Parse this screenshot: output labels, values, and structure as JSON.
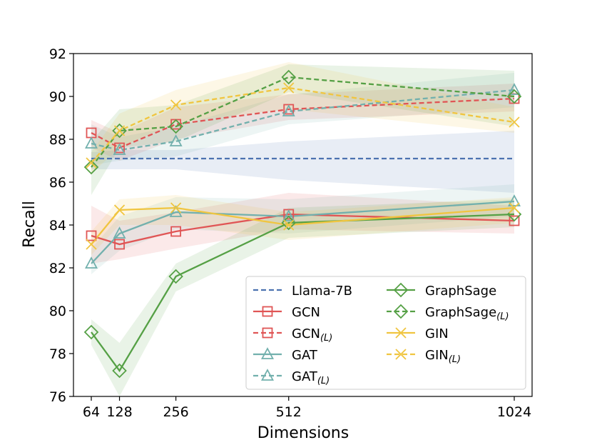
{
  "chart_data": {
    "type": "line",
    "title": "",
    "xlabel": "Dimensions",
    "ylabel": "Recall",
    "x": [
      64,
      128,
      256,
      512,
      1024
    ],
    "xticks": [
      64,
      128,
      256,
      512,
      1024
    ],
    "xtick_labels": [
      "64",
      "128",
      "256",
      "512",
      "1024"
    ],
    "ylim": [
      76,
      92
    ],
    "yticks": [
      76,
      78,
      80,
      82,
      84,
      86,
      88,
      90,
      92
    ],
    "ytick_labels": [
      "76",
      "78",
      "80",
      "82",
      "84",
      "86",
      "88",
      "90",
      "92"
    ],
    "grid": false,
    "legend_position": "lower-right",
    "series": [
      {
        "name": "Llama-7B",
        "legend_base": "Llama-7B",
        "legend_sub": "",
        "color": "#4C72B0",
        "dashed": true,
        "marker": "none",
        "values": [
          87.1,
          87.1,
          87.1,
          87.1,
          87.1
        ],
        "lower": [
          86.6,
          86.6,
          86.6,
          86.1,
          85.5
        ],
        "upper": [
          87.4,
          87.5,
          87.5,
          87.9,
          88.4
        ]
      },
      {
        "name": "GCN",
        "legend_base": "GCN",
        "legend_sub": "",
        "color": "#E05555",
        "dashed": false,
        "marker": "square",
        "values": [
          83.5,
          83.1,
          83.7,
          84.5,
          84.2
        ],
        "lower": [
          82.2,
          82.4,
          82.9,
          83.8,
          83.6
        ],
        "upper": [
          84.9,
          84.2,
          84.6,
          85.5,
          84.9
        ]
      },
      {
        "name": "GCN(L)",
        "legend_base": "GCN",
        "legend_sub": "(L)",
        "color": "#E05555",
        "dashed": true,
        "marker": "square",
        "values": [
          88.3,
          87.6,
          88.7,
          89.4,
          89.9
        ],
        "lower": [
          87.6,
          87.0,
          88.0,
          88.9,
          89.3
        ],
        "upper": [
          88.9,
          88.3,
          89.5,
          90.1,
          90.6
        ]
      },
      {
        "name": "GAT",
        "legend_base": "GAT",
        "legend_sub": "",
        "color": "#72B0AD",
        "dashed": false,
        "marker": "triangle",
        "values": [
          82.2,
          83.6,
          84.6,
          84.4,
          85.1
        ],
        "lower": [
          81.7,
          82.8,
          83.8,
          83.6,
          84.4
        ],
        "upper": [
          82.9,
          84.4,
          85.3,
          85.2,
          85.9
        ]
      },
      {
        "name": "GAT(L)",
        "legend_base": "GAT",
        "legend_sub": "(L)",
        "color": "#72B0AD",
        "dashed": true,
        "marker": "triangle",
        "values": [
          87.8,
          87.5,
          87.9,
          89.3,
          90.3
        ],
        "lower": [
          86.8,
          87.0,
          87.2,
          88.7,
          89.5
        ],
        "upper": [
          88.7,
          88.1,
          88.6,
          90.1,
          91.1
        ]
      },
      {
        "name": "GraphSage",
        "legend_base": "GraphSage",
        "legend_sub": "",
        "color": "#55A045",
        "dashed": false,
        "marker": "diamond",
        "values": [
          79.0,
          77.2,
          81.6,
          84.1,
          84.5
        ],
        "lower": [
          78.4,
          76.0,
          80.9,
          83.4,
          83.9
        ],
        "upper": [
          79.6,
          78.5,
          82.2,
          84.8,
          85.2
        ]
      },
      {
        "name": "GraphSage(L)",
        "legend_base": "GraphSage",
        "legend_sub": "(L)",
        "color": "#55A045",
        "dashed": true,
        "marker": "diamond",
        "values": [
          86.7,
          88.4,
          88.6,
          90.9,
          90.0
        ],
        "lower": [
          85.4,
          87.6,
          87.9,
          90.2,
          88.6
        ],
        "upper": [
          87.9,
          89.4,
          89.6,
          91.5,
          91.2
        ]
      },
      {
        "name": "GIN",
        "legend_base": "GIN",
        "legend_sub": "",
        "color": "#F0C540",
        "dashed": false,
        "marker": "x",
        "values": [
          83.1,
          84.7,
          84.8,
          84.0,
          84.8
        ],
        "lower": [
          82.6,
          84.0,
          84.0,
          83.3,
          84.1
        ],
        "upper": [
          83.7,
          85.2,
          85.4,
          84.6,
          85.3
        ]
      },
      {
        "name": "GIN(L)",
        "legend_base": "GIN",
        "legend_sub": "(L)",
        "color": "#F0C540",
        "dashed": true,
        "marker": "x",
        "values": [
          86.9,
          88.4,
          89.6,
          90.4,
          88.8
        ],
        "lower": [
          86.4,
          87.6,
          88.8,
          89.4,
          88.3
        ],
        "upper": [
          87.4,
          89.2,
          90.3,
          91.6,
          89.5
        ]
      }
    ]
  }
}
